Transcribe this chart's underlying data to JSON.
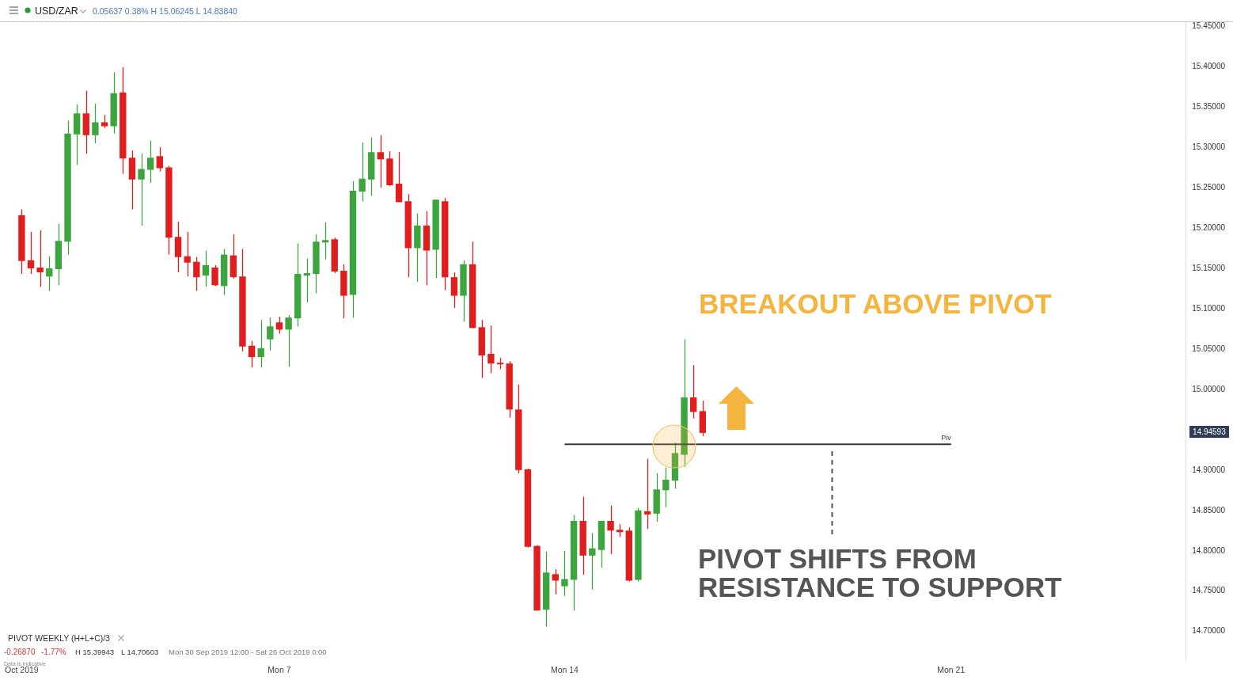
{
  "chart_data": {
    "type": "candlestick",
    "title": "USD/ZAR",
    "subtitle": "0.05637 0.38% H 15.06245 L 14.83840",
    "categories": [
      "Oct 2019",
      null,
      null,
      null,
      null,
      null,
      null,
      null,
      null,
      null,
      null,
      null,
      null,
      null,
      null,
      null,
      null,
      null,
      null,
      null,
      null,
      null,
      null,
      null,
      null,
      null,
      null,
      null,
      "Mon 7",
      null,
      null,
      null,
      null,
      null,
      null,
      null,
      null,
      null,
      null,
      null,
      null,
      null,
      null,
      null,
      null,
      null,
      null,
      null,
      null,
      null,
      null,
      null,
      null,
      null,
      null,
      null,
      null,
      null,
      null,
      "Mon 14",
      null,
      null,
      null,
      null,
      null,
      null,
      null,
      null,
      null,
      null,
      null,
      null,
      null,
      null,
      null,
      null,
      null,
      null,
      null,
      null,
      null,
      null,
      null,
      null,
      null,
      null,
      null,
      null,
      null,
      null,
      null,
      null,
      null,
      null,
      null,
      null,
      null,
      null,
      null,
      null,
      null,
      "Mon 21",
      null,
      null,
      null,
      null,
      null,
      null,
      null,
      null,
      null,
      null,
      null,
      null,
      null,
      null,
      null,
      null,
      null,
      null,
      null,
      null,
      null,
      null,
      null,
      null,
      null
    ],
    "ohlc": [
      [
        15.216,
        15.223,
        15.143,
        15.159
      ],
      [
        15.16,
        15.195,
        15.143,
        15.15
      ],
      [
        15.151,
        15.197,
        15.127,
        15.145
      ],
      [
        15.14,
        15.165,
        15.122,
        15.15
      ],
      [
        15.149,
        15.205,
        15.129,
        15.184
      ],
      [
        15.183,
        15.333,
        15.167,
        15.317
      ],
      [
        15.316,
        15.353,
        15.278,
        15.342
      ],
      [
        15.342,
        15.37,
        15.292,
        15.315
      ],
      [
        15.315,
        15.354,
        15.305,
        15.331
      ],
      [
        15.331,
        15.34,
        15.324,
        15.326
      ],
      [
        15.326,
        15.393,
        15.317,
        15.367
      ],
      [
        15.368,
        15.399,
        15.267,
        15.286
      ],
      [
        15.287,
        15.296,
        15.223,
        15.26
      ],
      [
        15.26,
        15.292,
        15.203,
        15.273
      ],
      [
        15.272,
        15.308,
        15.256,
        15.287
      ],
      [
        15.289,
        15.3,
        15.27,
        15.274
      ],
      [
        15.275,
        15.277,
        15.167,
        15.188
      ],
      [
        15.189,
        15.208,
        15.145,
        15.164
      ],
      [
        15.165,
        15.195,
        15.14,
        15.157
      ],
      [
        15.158,
        15.164,
        15.122,
        15.139
      ],
      [
        15.141,
        15.172,
        15.127,
        15.154
      ],
      [
        15.151,
        15.154,
        15.128,
        15.129
      ],
      [
        15.128,
        15.174,
        15.117,
        15.167
      ],
      [
        15.166,
        15.192,
        15.137,
        15.139
      ],
      [
        15.14,
        15.174,
        15.047,
        15.053
      ],
      [
        15.054,
        15.06,
        15.027,
        15.04
      ],
      [
        15.04,
        15.086,
        15.027,
        15.051
      ],
      [
        15.062,
        15.089,
        15.048,
        15.078
      ],
      [
        15.083,
        15.09,
        15.069,
        15.074
      ],
      [
        15.074,
        15.092,
        15.028,
        15.089
      ],
      [
        15.088,
        15.181,
        15.078,
        15.143
      ],
      [
        15.141,
        15.162,
        15.108,
        15.144
      ],
      [
        15.143,
        15.192,
        15.119,
        15.183
      ],
      [
        15.182,
        15.207,
        15.161,
        15.185
      ],
      [
        15.186,
        15.188,
        15.144,
        15.146
      ],
      [
        15.147,
        15.155,
        15.088,
        15.116
      ],
      [
        15.117,
        15.258,
        15.089,
        15.246
      ],
      [
        15.245,
        15.306,
        15.233,
        15.261
      ],
      [
        15.26,
        15.312,
        15.24,
        15.294
      ],
      [
        15.294,
        15.315,
        15.25,
        15.285
      ],
      [
        15.286,
        15.295,
        15.252,
        15.253
      ],
      [
        15.255,
        15.294,
        15.232,
        15.232
      ],
      [
        15.233,
        15.242,
        15.139,
        15.175
      ],
      [
        15.175,
        15.218,
        15.133,
        15.203
      ],
      [
        15.203,
        15.221,
        15.129,
        15.172
      ],
      [
        15.173,
        15.235,
        15.138,
        15.235
      ],
      [
        15.233,
        15.237,
        15.123,
        15.139
      ],
      [
        15.139,
        15.145,
        15.101,
        15.116
      ],
      [
        15.116,
        15.16,
        15.084,
        15.155
      ],
      [
        15.155,
        15.183,
        15.076,
        15.076
      ],
      [
        15.077,
        15.086,
        15.014,
        15.042
      ],
      [
        15.044,
        15.079,
        15.02,
        15.032
      ],
      [
        15.032,
        15.039,
        15.025,
        15.031
      ],
      [
        15.032,
        15.035,
        14.965,
        14.975
      ],
      [
        14.975,
        15.006,
        14.896,
        14.9
      ],
      [
        14.901,
        14.902,
        14.804,
        14.805
      ],
      [
        14.806,
        14.807,
        14.726,
        14.726
      ],
      [
        14.727,
        14.799,
        14.706,
        14.773
      ],
      [
        14.771,
        14.777,
        14.746,
        14.763
      ],
      [
        14.756,
        14.8,
        14.744,
        14.765
      ],
      [
        14.764,
        14.844,
        14.726,
        14.837
      ],
      [
        14.837,
        14.867,
        14.77,
        14.794
      ],
      [
        14.794,
        14.822,
        14.752,
        14.803
      ],
      [
        14.801,
        14.837,
        14.779,
        14.837
      ],
      [
        14.837,
        14.856,
        14.796,
        14.825
      ],
      [
        14.826,
        14.833,
        14.817,
        14.823
      ],
      [
        14.825,
        14.829,
        14.762,
        14.763
      ],
      [
        14.764,
        14.853,
        14.762,
        14.85
      ],
      [
        14.849,
        14.914,
        14.827,
        14.845
      ],
      [
        14.846,
        14.896,
        14.836,
        14.876
      ],
      [
        14.875,
        14.903,
        14.854,
        14.888
      ],
      [
        14.887,
        14.934,
        14.877,
        14.921
      ],
      [
        14.919,
        15.062,
        14.904,
        14.99
      ],
      [
        14.99,
        15.03,
        14.964,
        14.972
      ],
      [
        14.973,
        14.986,
        14.942,
        14.946
      ],
      null,
      null,
      null,
      null,
      null,
      null,
      null,
      null,
      null,
      null,
      null,
      null,
      null,
      null,
      null,
      null,
      null,
      null,
      null,
      null,
      null,
      null,
      null,
      null,
      null,
      null,
      null,
      null,
      null,
      null,
      null,
      null,
      null,
      null,
      null,
      null,
      null,
      null,
      null,
      null,
      null,
      null,
      null,
      null,
      null,
      null,
      null,
      null,
      null,
      null,
      null,
      null
    ],
    "colors": [
      "#e01e1e",
      "#e01e1e",
      "#e01e1e",
      "#3da53d",
      "#3da53d",
      "#3da53d",
      "#3da53d",
      "#e01e1e",
      "#3da53d",
      "#e01e1e",
      "#3da53d",
      "#e01e1e",
      "#e01e1e",
      "#3da53d",
      "#3da53d",
      "#e01e1e",
      "#e01e1e",
      "#e01e1e",
      "#e01e1e",
      "#e01e1e",
      "#3da53d",
      "#e01e1e",
      "#3da53d",
      "#e01e1e",
      "#e01e1e",
      "#e01e1e",
      "#3da53d",
      "#3da53d",
      "#e01e1e",
      "#3da53d",
      "#3da53d",
      "#3da53d",
      "#3da53d",
      "#3da53d",
      "#e01e1e",
      "#e01e1e",
      "#3da53d",
      "#3da53d",
      "#3da53d",
      "#e01e1e",
      "#e01e1e",
      "#e01e1e",
      "#e01e1e",
      "#3da53d",
      "#e01e1e",
      "#3da53d",
      "#e01e1e",
      "#e01e1e",
      "#3da53d",
      "#e01e1e",
      "#e01e1e",
      "#e01e1e",
      "#e01e1e",
      "#e01e1e",
      "#e01e1e",
      "#e01e1e",
      "#e01e1e",
      "#3da53d",
      "#e01e1e",
      "#3da53d",
      "#3da53d",
      "#e01e1e",
      "#3da53d",
      "#3da53d",
      "#e01e1e",
      "#e01e1e",
      "#e01e1e",
      "#3da53d",
      "#e01e1e",
      "#3da53d",
      "#3da53d",
      "#3da53d",
      "#3da53d",
      "#e01e1e",
      "#e01e1e",
      null,
      null,
      null,
      null,
      null,
      null,
      null,
      null,
      null,
      null,
      null,
      null,
      null,
      null,
      null,
      null,
      null,
      null,
      null,
      null,
      null,
      null,
      null,
      null,
      null,
      null,
      null,
      null,
      null,
      null,
      null,
      null,
      null,
      null,
      null,
      null,
      null,
      null,
      null,
      null,
      null,
      null,
      null,
      null,
      null,
      null,
      null,
      null,
      null,
      null,
      null,
      null
    ],
    "series": [
      {
        "type": "line",
        "name": "Piv",
        "color": "#33373f",
        "values": [
          null,
          null,
          null,
          null,
          null,
          null,
          null,
          null,
          null,
          null,
          null,
          null,
          null,
          null,
          null,
          null,
          null,
          null,
          null,
          null,
          null,
          null,
          null,
          null,
          null,
          null,
          null,
          null,
          null,
          null,
          null,
          null,
          null,
          null,
          null,
          null,
          null,
          null,
          null,
          null,
          null,
          null,
          null,
          null,
          null,
          null,
          null,
          null,
          null,
          null,
          null,
          null,
          null,
          null,
          null,
          null,
          null,
          null,
          null,
          14.932,
          null,
          null,
          null,
          null,
          null,
          null,
          null,
          null,
          null,
          null,
          null,
          null,
          null,
          null,
          null,
          null,
          null,
          null,
          null,
          null,
          null,
          null,
          null,
          null,
          null,
          null,
          null,
          null,
          null,
          null,
          null,
          null,
          null,
          null,
          null,
          null,
          null,
          null,
          null,
          null,
          null,
          14.932,
          null,
          null,
          null,
          null,
          null,
          null,
          null,
          null,
          null,
          null,
          null,
          null,
          null,
          null,
          null,
          null,
          null,
          null,
          null,
          null,
          null,
          null,
          null,
          null,
          null
        ]
      }
    ],
    "ylim": [
      14.664,
      15.455
    ],
    "yticks": [
      {
        "value": 14.7,
        "label": "14.70000"
      },
      {
        "value": 14.75,
        "label": "14.75000"
      },
      {
        "value": 14.8,
        "label": "14.80000"
      },
      {
        "value": 14.85,
        "label": "14.85000"
      },
      {
        "value": 14.9,
        "label": "14.90000"
      },
      {
        "value": 15.0,
        "label": "15.00000"
      },
      {
        "value": 15.05,
        "label": "15.05000"
      },
      {
        "value": 15.1,
        "label": "15.10000"
      },
      {
        "value": 15.15,
        "label": "15.15000"
      },
      {
        "value": 15.2,
        "label": "15.20000"
      },
      {
        "value": 15.25,
        "label": "15.25000"
      },
      {
        "value": 15.3,
        "label": "15.30000"
      },
      {
        "value": 15.35,
        "label": "15.35000"
      },
      {
        "value": 15.4,
        "label": "15.40000"
      },
      {
        "value": 15.45,
        "label": "15.45000"
      }
    ],
    "grid": false,
    "marker": "none",
    "annotations": [
      "BREAKOUT ABOVE PIVOT",
      "PIVOT SHIFTS FROM RESISTANCE TO SUPPORT",
      "PIVOT  WEEKLY  (H+L+C)/3",
      "-0.26870",
      "-1.77%",
      "H 15.39943",
      "L 14.70603",
      "Mon 30 Sep 2019 12:00 - Sat 26 Oct 2019 0:00",
      "Data is indicative",
      "14.94593"
    ]
  }
}
